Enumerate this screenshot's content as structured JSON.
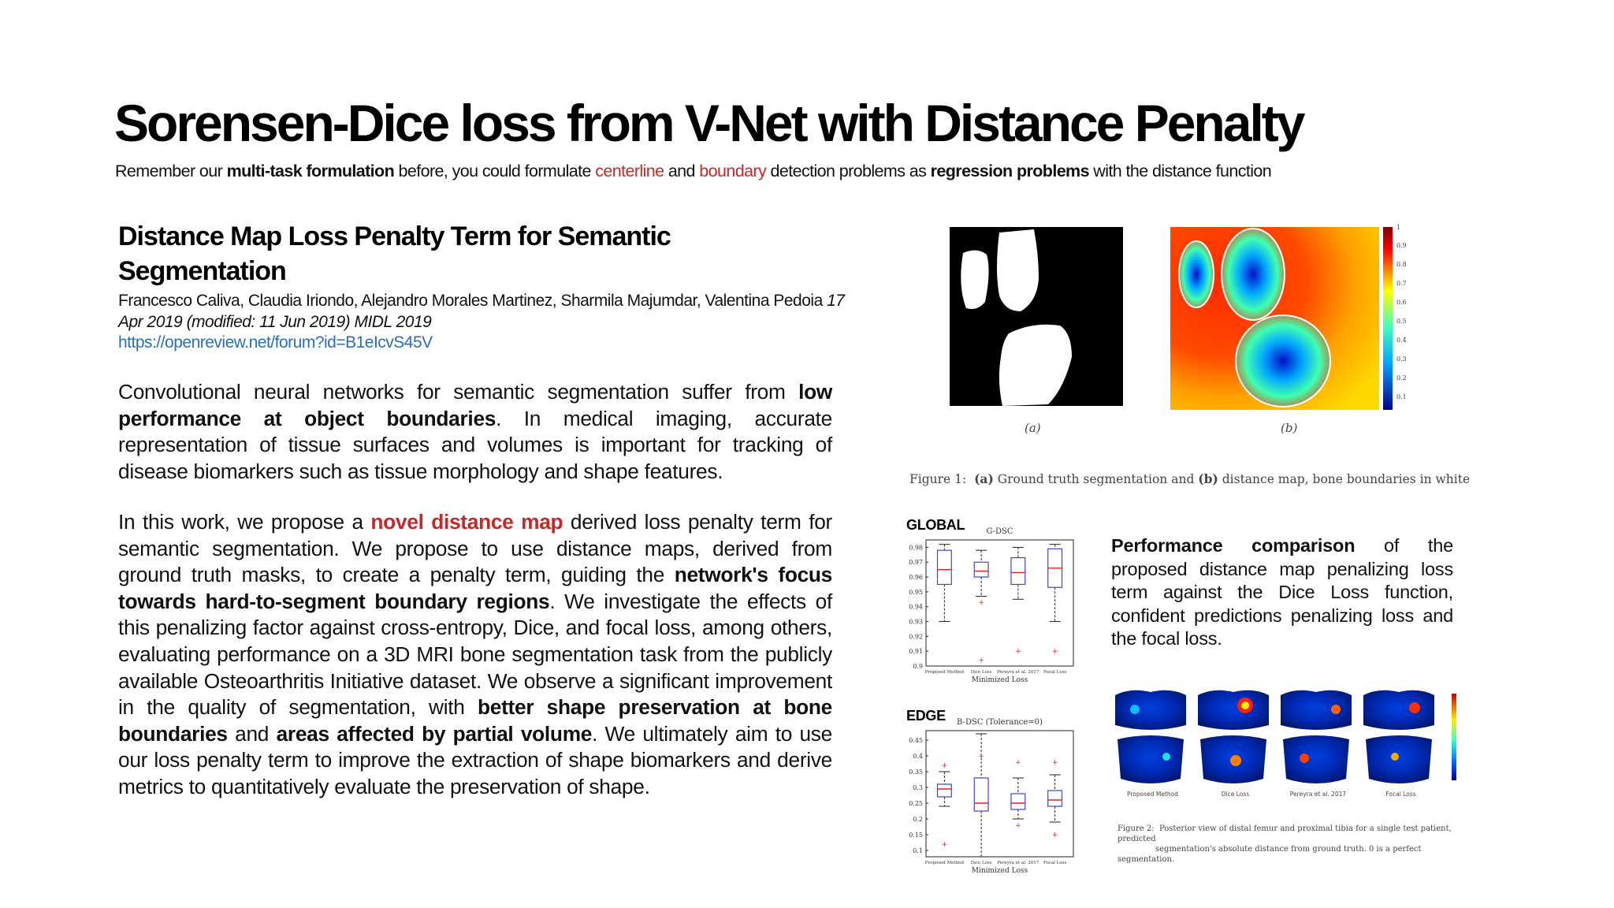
{
  "slide": {
    "title": "Sorensen-Dice loss from V-Net with Distance Penalty",
    "subtitle": {
      "t1": "Remember our ",
      "b1": "multi-task formulation",
      "t2": " before, you could formulate ",
      "r1": "centerline",
      "t3": " and ",
      "r2": "boundary",
      "t4": " detection problems as ",
      "b2": "regression problems",
      "t5": " with the distance function"
    }
  },
  "paper": {
    "title": "Distance Map Loss Penalty Term for Semantic Segmentation",
    "authors": "Francesco Caliva, Claudia Iriondo, Alejandro Morales Martinez, Sharmila Majumdar, Valentina Pedoia",
    "date_venue": "17 Apr 2019 (modified: 11 Jun 2019) MIDL 2019",
    "url": "https://openreview.net/forum?id=B1eIcvS45V"
  },
  "para1": {
    "t1": "Convolutional neural networks for semantic segmentation suffer from ",
    "b1": "low performance at object boundaries",
    "t2": ". In medical imaging, accurate representation of tissue surfaces and volumes is important for tracking of disease biomarkers such as tissue morphology and shape features."
  },
  "para2": {
    "t1": "In this work, we propose a ",
    "r1": "novel distance map",
    "t2": " derived loss penalty term for semantic segmentation. We propose to use distance maps, derived from ground truth masks, to create a penalty term, guiding the ",
    "b1": "network's focus towards hard-to-segment boundary regions",
    "t3": ". We investigate the effects of this penalizing factor against cross-entropy, Dice, and focal loss, among others, evaluating performance on a 3D MRI bone segmentation task from the publicly available Osteoarthritis Initiative dataset. We observe a significant improvement in the quality of segmentation, with ",
    "b2": "better shape preservation at bone boundaries",
    "t4": " and ",
    "b3": "areas affected by partial volume",
    "t5": ". We ultimately aim to use our loss penalty term to improve the extraction of shape biomarkers and derive metrics to quantitatively evaluate the preservation of shape."
  },
  "figure1": {
    "label_a": "(a)",
    "label_b": "(b)",
    "caption_prefix": "Figure 1:",
    "caption_a": "(a)",
    "caption_mid": " Ground truth segmentation and ",
    "caption_b": "(b)",
    "caption_end": " distance map, bone boundaries in white",
    "colorbar_ticks": [
      "1",
      "0.9",
      "0.8",
      "0.7",
      "0.6",
      "0.5",
      "0.4",
      "0.3",
      "0.2",
      "0.1"
    ]
  },
  "global_label": "GLOBAL",
  "edge_label": "EDGE",
  "perf_text": {
    "b1": "Performance comparison",
    "t1": " of the proposed distance map penalizing loss term against the Dice Loss function, confident predictions penalizing loss and the focal loss."
  },
  "figure2": {
    "labels": [
      "Proposed Method",
      "Dice Loss",
      "Pereyra et al. 2017",
      "Focal Loss"
    ],
    "caption_prefix": "Figure 2:",
    "caption_line1": "Posterior view of distal femur and proximal tibia for a single test patient, predicted",
    "caption_line2": "segmentation's absolute distance from ground truth. 0 is a perfect segmentation."
  },
  "chart_data": [
    {
      "type": "box",
      "title": "G-DSC",
      "xlabel": "Minimized Loss",
      "categories": [
        "Proposed Method",
        "Dice Loss",
        "Pereyra et al. 2017",
        "Focal Loss"
      ],
      "yticks": [
        "0.98",
        "0.97",
        "0.96",
        "0.95",
        "0.94",
        "0.93",
        "0.92",
        "0.91",
        "0.9"
      ],
      "ylim": [
        0.9,
        0.985
      ],
      "boxes": [
        {
          "min": 0.93,
          "q1": 0.955,
          "median": 0.965,
          "q3": 0.978,
          "max": 0.982,
          "outliers": []
        },
        {
          "min": 0.947,
          "q1": 0.96,
          "median": 0.964,
          "q3": 0.97,
          "max": 0.978,
          "outliers": [
            0.943,
            0.904
          ]
        },
        {
          "min": 0.945,
          "q1": 0.955,
          "median": 0.963,
          "q3": 0.973,
          "max": 0.98,
          "outliers": [
            0.91
          ]
        },
        {
          "min": 0.93,
          "q1": 0.953,
          "median": 0.966,
          "q3": 0.979,
          "max": 0.982,
          "outliers": [
            0.91
          ]
        }
      ]
    },
    {
      "type": "box",
      "title": "B-DSC (Tolerance=0)",
      "xlabel": "Minimized Loss",
      "categories": [
        "Proposed Method",
        "Dice Loss",
        "Pereyra et al. 2017",
        "Focal Loss"
      ],
      "yticks": [
        "0.45",
        "0.4",
        "0.35",
        "0.3",
        "0.25",
        "0.2",
        "0.15",
        "0.1"
      ],
      "ylim": [
        0.08,
        0.48
      ],
      "boxes": [
        {
          "min": 0.24,
          "q1": 0.27,
          "median": 0.295,
          "q3": 0.31,
          "max": 0.35,
          "outliers": [
            0.37,
            0.12
          ]
        },
        {
          "min": 0.08,
          "q1": 0.225,
          "median": 0.25,
          "q3": 0.33,
          "max": 0.47,
          "outliers": [
            0.4
          ]
        },
        {
          "min": 0.2,
          "q1": 0.23,
          "median": 0.25,
          "q3": 0.28,
          "max": 0.33,
          "outliers": [
            0.38,
            0.18
          ]
        },
        {
          "min": 0.19,
          "q1": 0.24,
          "median": 0.26,
          "q3": 0.29,
          "max": 0.34,
          "outliers": [
            0.38,
            0.15
          ]
        }
      ]
    }
  ]
}
